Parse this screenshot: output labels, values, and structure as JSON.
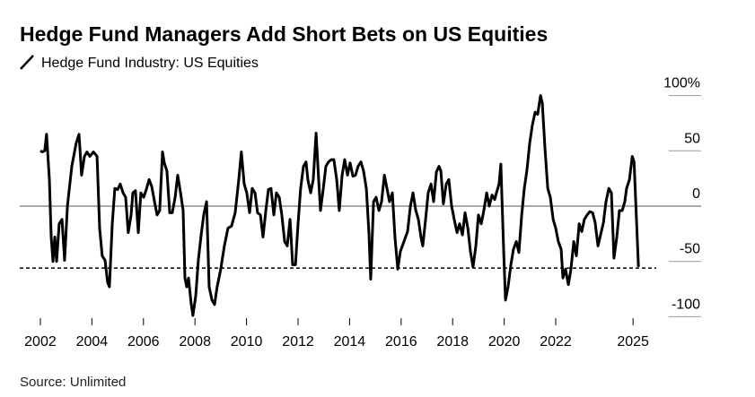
{
  "chart_data": {
    "type": "line",
    "title": "Hedge Fund Managers Add Short Bets on US Equities",
    "source": "Source: Unlimited",
    "series": [
      {
        "name": "Hedge Fund Industry: US Equities",
        "color": "#000000",
        "x": [
          2002.0,
          2002.07,
          2002.17,
          2002.24,
          2002.35,
          2002.42,
          2002.49,
          2002.56,
          2002.63,
          2002.73,
          2002.84,
          2002.94,
          2003.05,
          2003.22,
          2003.39,
          2003.5,
          2003.6,
          2003.71,
          2003.81,
          2003.92,
          2004.06,
          2004.2,
          2004.3,
          2004.4,
          2004.51,
          2004.61,
          2004.68,
          2004.79,
          2004.89,
          2005.0,
          2005.1,
          2005.21,
          2005.31,
          2005.41,
          2005.52,
          2005.59,
          2005.69,
          2005.8,
          2005.9,
          2006.01,
          2006.11,
          2006.22,
          2006.32,
          2006.43,
          2006.53,
          2006.63,
          2006.74,
          2006.81,
          2006.91,
          2007.02,
          2007.12,
          2007.23,
          2007.33,
          2007.44,
          2007.54,
          2007.61,
          2007.68,
          2007.75,
          2007.85,
          2007.92,
          2008.03,
          2008.13,
          2008.24,
          2008.34,
          2008.45,
          2008.55,
          2008.66,
          2008.76,
          2008.86,
          2009.0,
          2009.14,
          2009.28,
          2009.42,
          2009.56,
          2009.7,
          2009.8,
          2009.91,
          2010.01,
          2010.12,
          2010.22,
          2010.33,
          2010.43,
          2010.54,
          2010.64,
          2010.75,
          2010.85,
          2010.95,
          2011.06,
          2011.16,
          2011.27,
          2011.37,
          2011.48,
          2011.58,
          2011.69,
          2011.79,
          2011.9,
          2012.0,
          2012.1,
          2012.21,
          2012.31,
          2012.38,
          2012.49,
          2012.59,
          2012.7,
          2012.8,
          2012.87,
          2012.98,
          2013.08,
          2013.18,
          2013.29,
          2013.39,
          2013.5,
          2013.6,
          2013.71,
          2013.81,
          2013.92,
          2014.02,
          2014.13,
          2014.23,
          2014.33,
          2014.44,
          2014.54,
          2014.65,
          2014.75,
          2014.82,
          2014.93,
          2015.03,
          2015.14,
          2015.24,
          2015.35,
          2015.45,
          2015.55,
          2015.66,
          2015.76,
          2015.87,
          2015.97,
          2016.11,
          2016.25,
          2016.36,
          2016.46,
          2016.57,
          2016.67,
          2016.77,
          2016.84,
          2016.95,
          2017.05,
          2017.16,
          2017.26,
          2017.37,
          2017.47,
          2017.54,
          2017.64,
          2017.75,
          2017.85,
          2017.96,
          2018.06,
          2018.17,
          2018.27,
          2018.38,
          2018.48,
          2018.59,
          2018.69,
          2018.79,
          2018.9,
          2019.0,
          2019.11,
          2019.21,
          2019.32,
          2019.42,
          2019.53,
          2019.63,
          2019.7,
          2019.8,
          2019.87,
          2019.98,
          2020.05,
          2020.15,
          2020.26,
          2020.36,
          2020.47,
          2020.57,
          2020.68,
          2020.78,
          2020.88,
          2020.99,
          2021.09,
          2021.2,
          2021.3,
          2021.41,
          2021.48,
          2021.58,
          2021.69,
          2021.79,
          2021.9,
          2022.0,
          2022.1,
          2022.21,
          2022.28,
          2022.38,
          2022.49,
          2022.59,
          2022.7,
          2022.8,
          2022.91,
          2023.01,
          2023.11,
          2023.22,
          2023.32,
          2023.43,
          2023.53,
          2023.64,
          2023.74,
          2023.85,
          2023.95,
          2024.06,
          2024.16,
          2024.26,
          2024.37,
          2024.47,
          2024.58,
          2024.68,
          2024.75,
          2024.86,
          2024.97,
          2025.04,
          2025.14,
          2025.21
        ],
        "values": [
          50,
          49,
          50,
          65,
          24,
          -28,
          -50,
          -28,
          -50,
          -16,
          -12,
          -49,
          0,
          36,
          57,
          65,
          28,
          45,
          49,
          45,
          49,
          45,
          -20,
          -45,
          -49,
          -69,
          -73,
          -16,
          16,
          15,
          20,
          12,
          8,
          -24,
          -8,
          12,
          14,
          -24,
          12,
          8,
          15,
          24,
          18,
          4,
          -8,
          -4,
          49,
          39,
          32,
          -6,
          -6,
          8,
          28,
          12,
          -4,
          -65,
          -73,
          -65,
          -88,
          -99,
          -81,
          -49,
          -26,
          -8,
          4,
          -73,
          -85,
          -89,
          -73,
          -57,
          -36,
          -20,
          -18,
          -6,
          24,
          49,
          20,
          12,
          -6,
          16,
          12,
          -6,
          -8,
          -28,
          -4,
          15,
          16,
          -8,
          12,
          8,
          -8,
          -32,
          -36,
          -12,
          -53,
          -53,
          -16,
          16,
          36,
          40,
          24,
          12,
          24,
          66,
          24,
          -4,
          16,
          36,
          40,
          42,
          42,
          24,
          -4,
          28,
          42,
          28,
          39,
          27,
          28,
          36,
          40,
          32,
          16,
          -24,
          -66,
          4,
          8,
          -4,
          4,
          28,
          16,
          4,
          12,
          -28,
          -57,
          -41,
          -32,
          -23,
          0,
          12,
          -4,
          -12,
          -28,
          -36,
          -12,
          12,
          20,
          4,
          31,
          36,
          32,
          2,
          20,
          24,
          0,
          -12,
          -24,
          -16,
          -26,
          -6,
          -20,
          -41,
          -55,
          -36,
          -8,
          -16,
          -4,
          12,
          0,
          10,
          6,
          12,
          20,
          38,
          -41,
          -85,
          -73,
          -53,
          -39,
          -32,
          -42,
          -8,
          16,
          32,
          57,
          73,
          85,
          83,
          100,
          93,
          53,
          16,
          8,
          -12,
          -20,
          -32,
          -39,
          -65,
          -57,
          -71,
          -57,
          -32,
          -45,
          -16,
          -23,
          -12,
          -8,
          -5,
          -6,
          -15,
          -36,
          -26,
          -15,
          4,
          16,
          12,
          -47,
          -28,
          -4,
          -4,
          4,
          16,
          24,
          45,
          40,
          -16,
          -55
        ]
      }
    ],
    "reference_line": -56,
    "xlim": [
      2001.2,
      2025.5
    ],
    "xticks": [
      2002,
      2004,
      2006,
      2008,
      2010,
      2012,
      2014,
      2016,
      2018,
      2020,
      2022,
      2025
    ],
    "ylim": [
      -100,
      100
    ],
    "yticks": [
      {
        "value": 100,
        "label": "100%"
      },
      50,
      0,
      -50,
      -100
    ],
    "grid": true
  }
}
